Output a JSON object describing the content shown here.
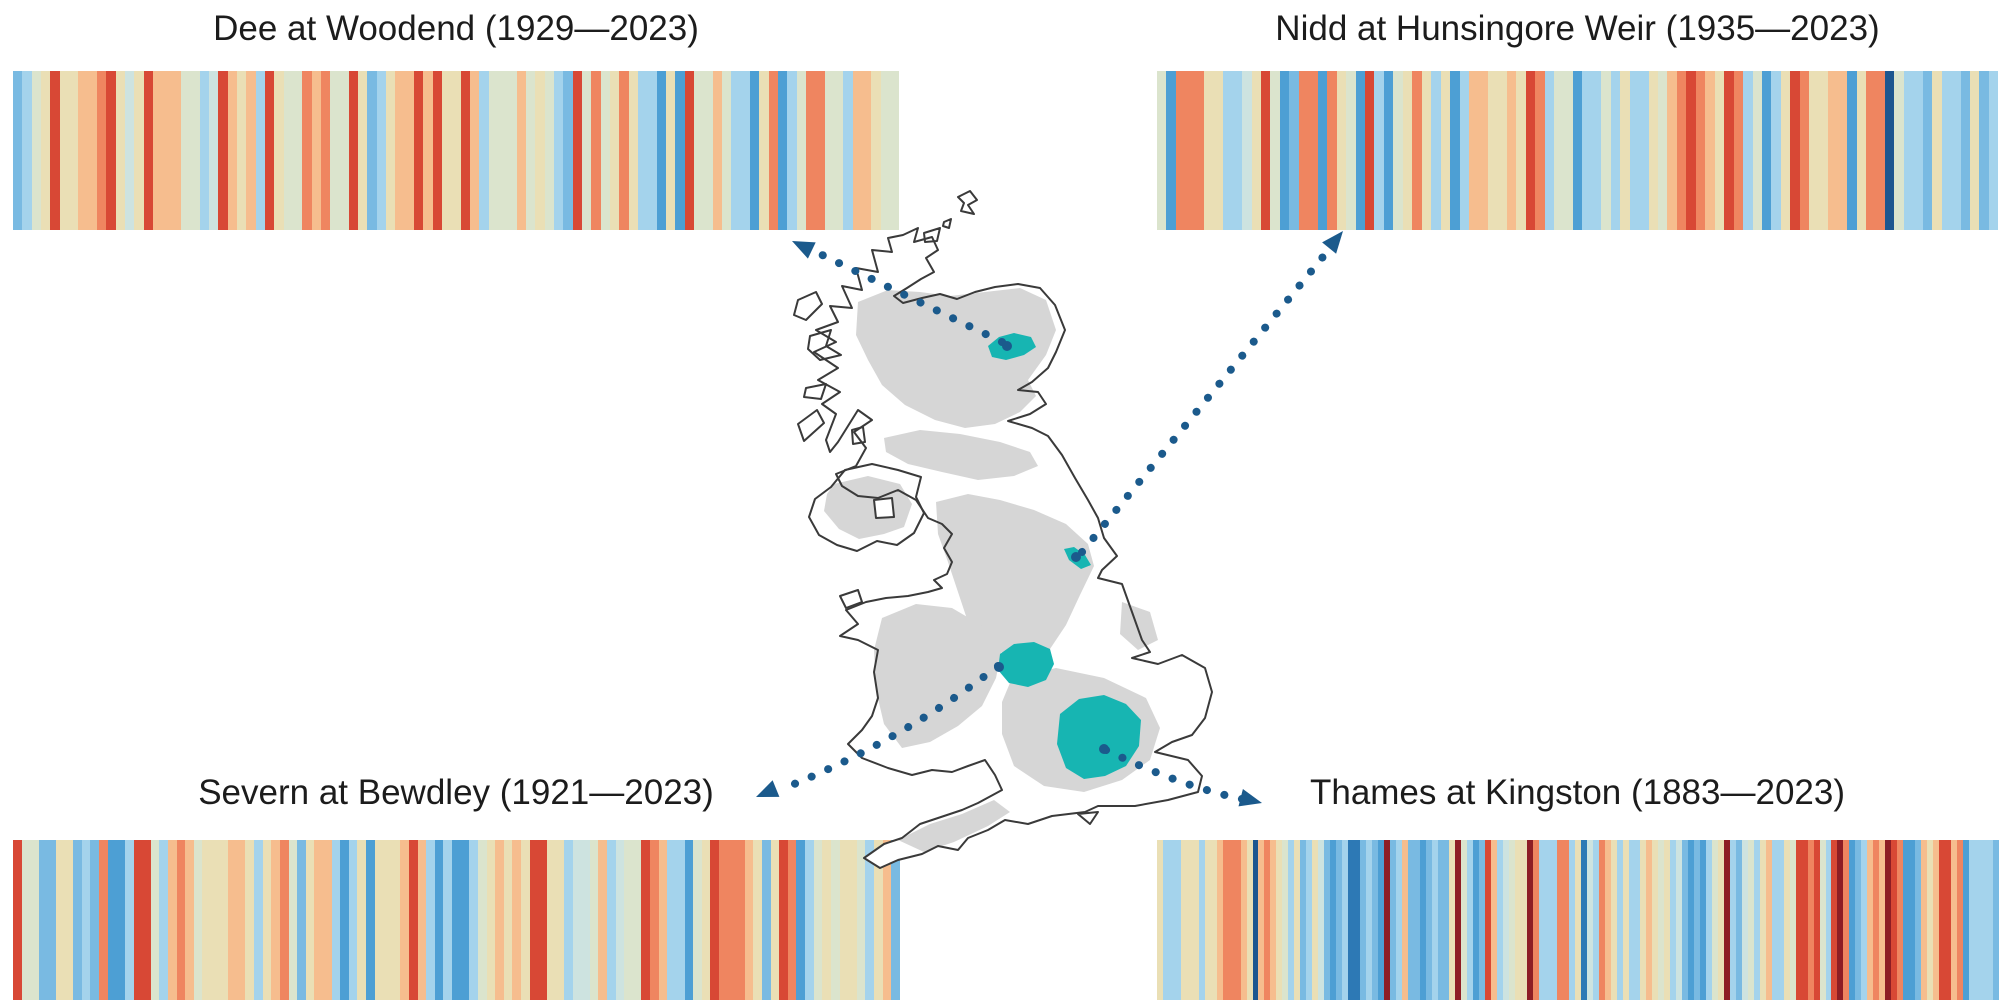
{
  "page": {
    "background": "#ffffff"
  },
  "palette": {
    "m": "#8e1d24",
    "r": "#d84835",
    "o": "#ef8560",
    "p": "#f6bd8e",
    "c": "#eadfb5",
    "g": "#dbe4cd",
    "t": "#cde3e0",
    "l": "#a4d3ec",
    "b": "#79bae2",
    "s": "#4d9fd4",
    "d": "#2d79b5",
    "n": "#1d568f"
  },
  "chart_data": [
    {
      "id": "dee",
      "type": "stripes",
      "title": "Dee at Woodend (1929—2023)",
      "river": "Dee",
      "station": "Woodend",
      "start_year": 1929,
      "end_year": 2023,
      "n_years": 95,
      "position": "top-left",
      "stripe_colors": [
        "b",
        "l",
        "g",
        "c",
        "r",
        "c",
        "c",
        "p",
        "p",
        "o",
        "r",
        "c",
        "t",
        "c",
        "r",
        "p",
        "p",
        "p",
        "g",
        "g",
        "l",
        "t",
        "r",
        "p",
        "c",
        "p",
        "l",
        "r",
        "c",
        "g",
        "g",
        "o",
        "p",
        "o",
        "g",
        "g",
        "r",
        "c",
        "b",
        "l",
        "c",
        "p",
        "p",
        "r",
        "p",
        "r",
        "c",
        "c",
        "r",
        "p",
        "l",
        "g",
        "g",
        "g",
        "p",
        "g",
        "c",
        "g",
        "l",
        "b",
        "r",
        "g",
        "o",
        "g",
        "c",
        "o",
        "c",
        "l",
        "l",
        "s",
        "c",
        "s",
        "r",
        "g",
        "g",
        "p",
        "g",
        "l",
        "l",
        "s",
        "c",
        "o",
        "s",
        "l",
        "g",
        "o",
        "o",
        "g",
        "g",
        "l",
        "p",
        "p",
        "c",
        "g",
        "g"
      ]
    },
    {
      "id": "nidd",
      "type": "stripes",
      "title": "Nidd at Hunsingore Weir (1935—2023)",
      "river": "Nidd",
      "station": "Hunsingore Weir",
      "start_year": 1935,
      "end_year": 2023,
      "n_years": 89,
      "position": "top-right",
      "stripe_colors": [
        "g",
        "s",
        "o",
        "o",
        "o",
        "c",
        "c",
        "l",
        "l",
        "t",
        "c",
        "r",
        "g",
        "s",
        "b",
        "o",
        "o",
        "s",
        "o",
        "c",
        "g",
        "s",
        "r",
        "l",
        "s",
        "g",
        "c",
        "o",
        "c",
        "l",
        "c",
        "s",
        "l",
        "p",
        "p",
        "c",
        "c",
        "p",
        "c",
        "r",
        "o",
        "l",
        "g",
        "g",
        "s",
        "l",
        "l",
        "g",
        "l",
        "c",
        "l",
        "l",
        "c",
        "g",
        "p",
        "o",
        "r",
        "o",
        "p",
        "c",
        "r",
        "o",
        "l",
        "g",
        "s",
        "l",
        "c",
        "r",
        "o",
        "c",
        "c",
        "p",
        "p",
        "s",
        "c",
        "o",
        "o",
        "n",
        "g",
        "l",
        "l",
        "b",
        "c",
        "l",
        "l",
        "b",
        "c",
        "b",
        "l"
      ]
    },
    {
      "id": "severn",
      "type": "stripes",
      "title": "Severn at Bewdley (1921—2023)",
      "river": "Severn",
      "station": "Bewdley",
      "start_year": 1921,
      "end_year": 2023,
      "n_years": 103,
      "position": "bottom-left",
      "stripe_colors": [
        "r",
        "g",
        "g",
        "b",
        "b",
        "c",
        "c",
        "b",
        "l",
        "b",
        "o",
        "s",
        "s",
        "l",
        "r",
        "r",
        "g",
        "l",
        "p",
        "o",
        "p",
        "g",
        "c",
        "c",
        "c",
        "p",
        "p",
        "c",
        "l",
        "c",
        "p",
        "o",
        "g",
        "b",
        "c",
        "p",
        "p",
        "l",
        "s",
        "l",
        "c",
        "s",
        "c",
        "c",
        "c",
        "p",
        "r",
        "p",
        "l",
        "s",
        "l",
        "s",
        "s",
        "l",
        "g",
        "c",
        "p",
        "c",
        "p",
        "c",
        "r",
        "r",
        "c",
        "c",
        "l",
        "t",
        "t",
        "g",
        "p",
        "l",
        "t",
        "g",
        "g",
        "r",
        "o",
        "p",
        "l",
        "l",
        "s",
        "g",
        "c",
        "r",
        "o",
        "o",
        "o",
        "p",
        "c",
        "b",
        "c",
        "r",
        "o",
        "s",
        "l",
        "g",
        "c",
        "g",
        "c",
        "c",
        "g",
        "l",
        "c",
        "p",
        "b"
      ]
    },
    {
      "id": "thames",
      "type": "stripes",
      "title": "Thames at Kingston (1883—2023)",
      "river": "Thames",
      "station": "Kingston",
      "start_year": 1883,
      "end_year": 2023,
      "n_years": 141,
      "position": "bottom-right",
      "stripe_colors": [
        "c",
        "l",
        "l",
        "l",
        "c",
        "c",
        "c",
        "l",
        "c",
        "c",
        "p",
        "o",
        "o",
        "o",
        "p",
        "c",
        "n",
        "p",
        "o",
        "p",
        "c",
        "g",
        "l",
        "c",
        "b",
        "l",
        "c",
        "t",
        "b",
        "s",
        "b",
        "l",
        "d",
        "d",
        "b",
        "l",
        "b",
        "s",
        "m",
        "b",
        "l",
        "p",
        "b",
        "b",
        "s",
        "b",
        "l",
        "b",
        "b",
        "c",
        "m",
        "g",
        "l",
        "s",
        "b",
        "r",
        "p",
        "l",
        "t",
        "g",
        "c",
        "c",
        "m",
        "o",
        "l",
        "l",
        "l",
        "o",
        "o",
        "l",
        "c",
        "d",
        "t",
        "l",
        "o",
        "p",
        "c",
        "l",
        "c",
        "l",
        "l",
        "c",
        "p",
        "c",
        "g",
        "c",
        "l",
        "t",
        "b",
        "s",
        "b",
        "s",
        "l",
        "g",
        "c",
        "m",
        "l",
        "b",
        "t",
        "g",
        "l",
        "c",
        "p",
        "l",
        "l",
        "c",
        "g",
        "r",
        "r",
        "o",
        "r",
        "g",
        "l",
        "r",
        "m",
        "o",
        "s",
        "b",
        "l",
        "p",
        "o",
        "p",
        "m",
        "r",
        "o",
        "s",
        "s",
        "b",
        "p",
        "c",
        "p",
        "r",
        "r",
        "p",
        "o",
        "s",
        "l",
        "l",
        "l",
        "l",
        "b"
      ]
    }
  ],
  "map": {
    "description": "Outline map of Great Britain and Northern Ireland with gauged upland areas shaded grey and four highlighted river catchments",
    "colors": {
      "catchment": "#17b5b2",
      "upland": "#d6d6d6",
      "coastline": "#3a3a3a",
      "arrow": "#1b5a8c",
      "lake": "#ffffff",
      "land": "#ffffff"
    },
    "catchments": [
      {
        "name": "Dee at Woodend"
      },
      {
        "name": "Nidd at Hunsingore Weir"
      },
      {
        "name": "Severn at Bewdley"
      },
      {
        "name": "Thames at Kingston"
      }
    ]
  }
}
